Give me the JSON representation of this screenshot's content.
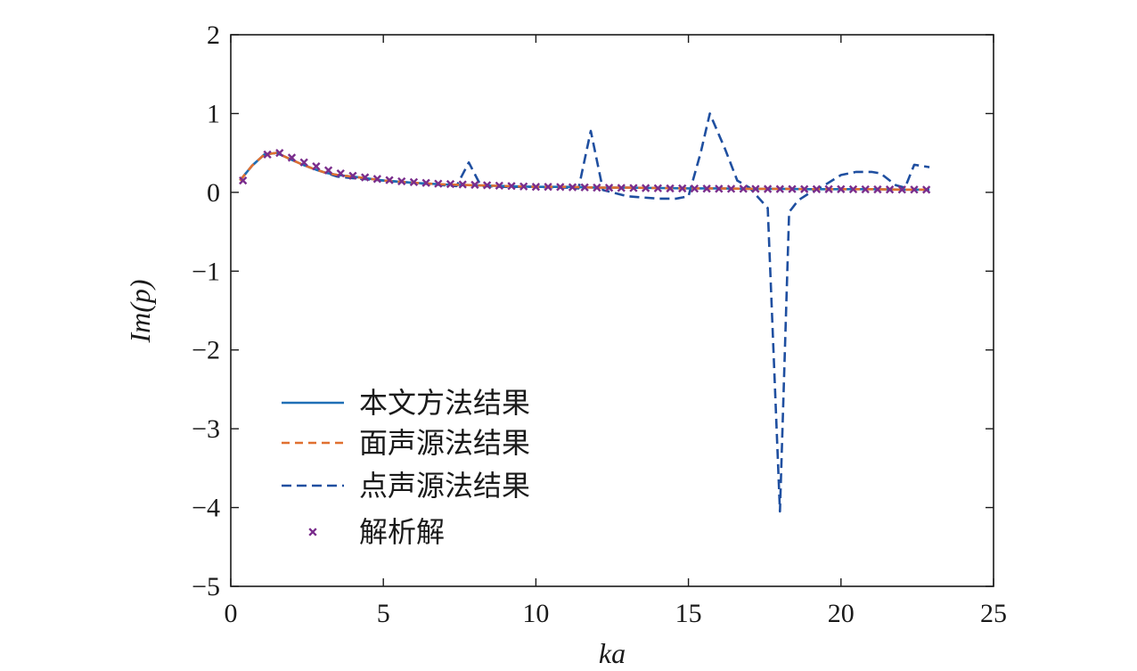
{
  "chart_data": {
    "type": "line",
    "title": "",
    "xlabel": "ka",
    "ylabel": "Im(p)",
    "xlim": [
      0,
      25
    ],
    "ylim": [
      -5,
      2
    ],
    "x_ticks": [
      0,
      5,
      10,
      15,
      20,
      25
    ],
    "x_tick_labels": [
      "0",
      "5",
      "10",
      "15",
      "20",
      "25"
    ],
    "y_ticks": [
      2,
      1,
      0,
      -1,
      -2,
      -3,
      -4,
      -5
    ],
    "y_tick_labels": [
      "2",
      "1",
      "0",
      "−1",
      "−2",
      "−3",
      "−4",
      "−5"
    ],
    "grid": false,
    "legend_position": "lower-left",
    "series": [
      {
        "name": "本文方法结果",
        "style": "solid",
        "color": "#1f6fb5",
        "x": [
          0.3,
          0.7,
          1.1,
          1.5,
          1.9,
          2.3,
          2.7,
          3.1,
          3.5,
          4.0,
          5.0,
          6.0,
          7.0,
          8.0,
          9.0,
          10.0,
          11.0,
          12.0,
          13.0,
          14.0,
          15.0,
          16.0,
          17.0,
          18.0,
          19.0,
          20.0,
          21.0,
          22.0,
          22.9
        ],
        "y": [
          0.15,
          0.34,
          0.48,
          0.5,
          0.43,
          0.36,
          0.3,
          0.25,
          0.22,
          0.2,
          0.15,
          0.12,
          0.1,
          0.09,
          0.08,
          0.07,
          0.07,
          0.06,
          0.06,
          0.055,
          0.05,
          0.05,
          0.045,
          0.045,
          0.04,
          0.04,
          0.04,
          0.035,
          0.035
        ]
      },
      {
        "name": "面声源法结果",
        "style": "dashed",
        "color": "#e07030",
        "x": [
          0.3,
          0.7,
          1.1,
          1.5,
          1.9,
          2.3,
          2.7,
          3.1,
          3.5,
          4.0,
          5.0,
          6.0,
          7.0,
          8.0,
          9.0,
          10.0,
          11.0,
          12.0,
          13.0,
          14.0,
          15.0,
          16.0,
          17.0,
          18.0,
          19.0,
          20.0,
          21.0,
          22.0,
          22.9
        ],
        "y": [
          0.15,
          0.34,
          0.48,
          0.5,
          0.43,
          0.36,
          0.3,
          0.25,
          0.22,
          0.2,
          0.15,
          0.12,
          0.1,
          0.09,
          0.08,
          0.07,
          0.07,
          0.06,
          0.06,
          0.055,
          0.05,
          0.05,
          0.045,
          0.045,
          0.04,
          0.04,
          0.04,
          0.035,
          0.035
        ]
      },
      {
        "name": "点声源法结果",
        "style": "dashed",
        "color": "#1f4fa0",
        "x": [
          0.3,
          0.7,
          1.1,
          1.5,
          1.9,
          2.3,
          2.7,
          3.1,
          3.5,
          4.0,
          5.0,
          6.0,
          7.0,
          7.4,
          7.8,
          8.2,
          9.0,
          10.0,
          11.0,
          11.4,
          11.8,
          12.2,
          13.0,
          14.0,
          14.6,
          15.0,
          15.4,
          15.7,
          16.2,
          16.6,
          17.0,
          17.6,
          18.0,
          18.3,
          18.6,
          19.0,
          19.5,
          20.0,
          20.5,
          21.0,
          21.3,
          21.8,
          22.1,
          22.4,
          22.9
        ],
        "y": [
          0.15,
          0.34,
          0.48,
          0.5,
          0.43,
          0.36,
          0.3,
          0.25,
          0.2,
          0.18,
          0.15,
          0.12,
          0.09,
          0.08,
          0.38,
          0.08,
          0.07,
          0.07,
          0.06,
          0.05,
          0.78,
          0.03,
          -0.05,
          -0.08,
          -0.08,
          -0.05,
          0.5,
          1.0,
          0.55,
          0.15,
          0.06,
          -0.2,
          -4.05,
          -0.25,
          -0.1,
          0.0,
          0.1,
          0.22,
          0.26,
          0.26,
          0.24,
          0.09,
          0.06,
          0.35,
          0.32
        ]
      },
      {
        "name": "解析解",
        "style": "markers",
        "marker": "x",
        "color": "#7a2d8c",
        "x": [
          0.4,
          1.2,
          1.6,
          2.0,
          2.4,
          2.8,
          3.2,
          3.6,
          4.0,
          4.4,
          4.8,
          5.2,
          5.6,
          6.0,
          6.4,
          6.8,
          7.2,
          7.6,
          8.0,
          8.4,
          8.8,
          9.2,
          9.6,
          10.0,
          10.4,
          10.8,
          11.2,
          11.6,
          12.0,
          12.4,
          12.8,
          13.2,
          13.6,
          14.0,
          14.4,
          14.8,
          15.2,
          15.6,
          16.0,
          16.4,
          16.8,
          17.2,
          17.6,
          18.0,
          18.4,
          18.8,
          19.2,
          19.6,
          20.0,
          20.4,
          20.8,
          21.2,
          21.6,
          22.0,
          22.4,
          22.8
        ],
        "y": [
          0.15,
          0.48,
          0.5,
          0.44,
          0.38,
          0.33,
          0.28,
          0.24,
          0.21,
          0.19,
          0.17,
          0.155,
          0.14,
          0.13,
          0.12,
          0.11,
          0.105,
          0.1,
          0.095,
          0.09,
          0.085,
          0.08,
          0.075,
          0.07,
          0.07,
          0.068,
          0.065,
          0.063,
          0.06,
          0.058,
          0.056,
          0.055,
          0.054,
          0.052,
          0.05,
          0.05,
          0.048,
          0.047,
          0.046,
          0.045,
          0.045,
          0.044,
          0.043,
          0.042,
          0.042,
          0.041,
          0.04,
          0.04,
          0.04,
          0.039,
          0.038,
          0.037,
          0.036,
          0.035,
          0.035,
          0.034
        ]
      }
    ]
  }
}
